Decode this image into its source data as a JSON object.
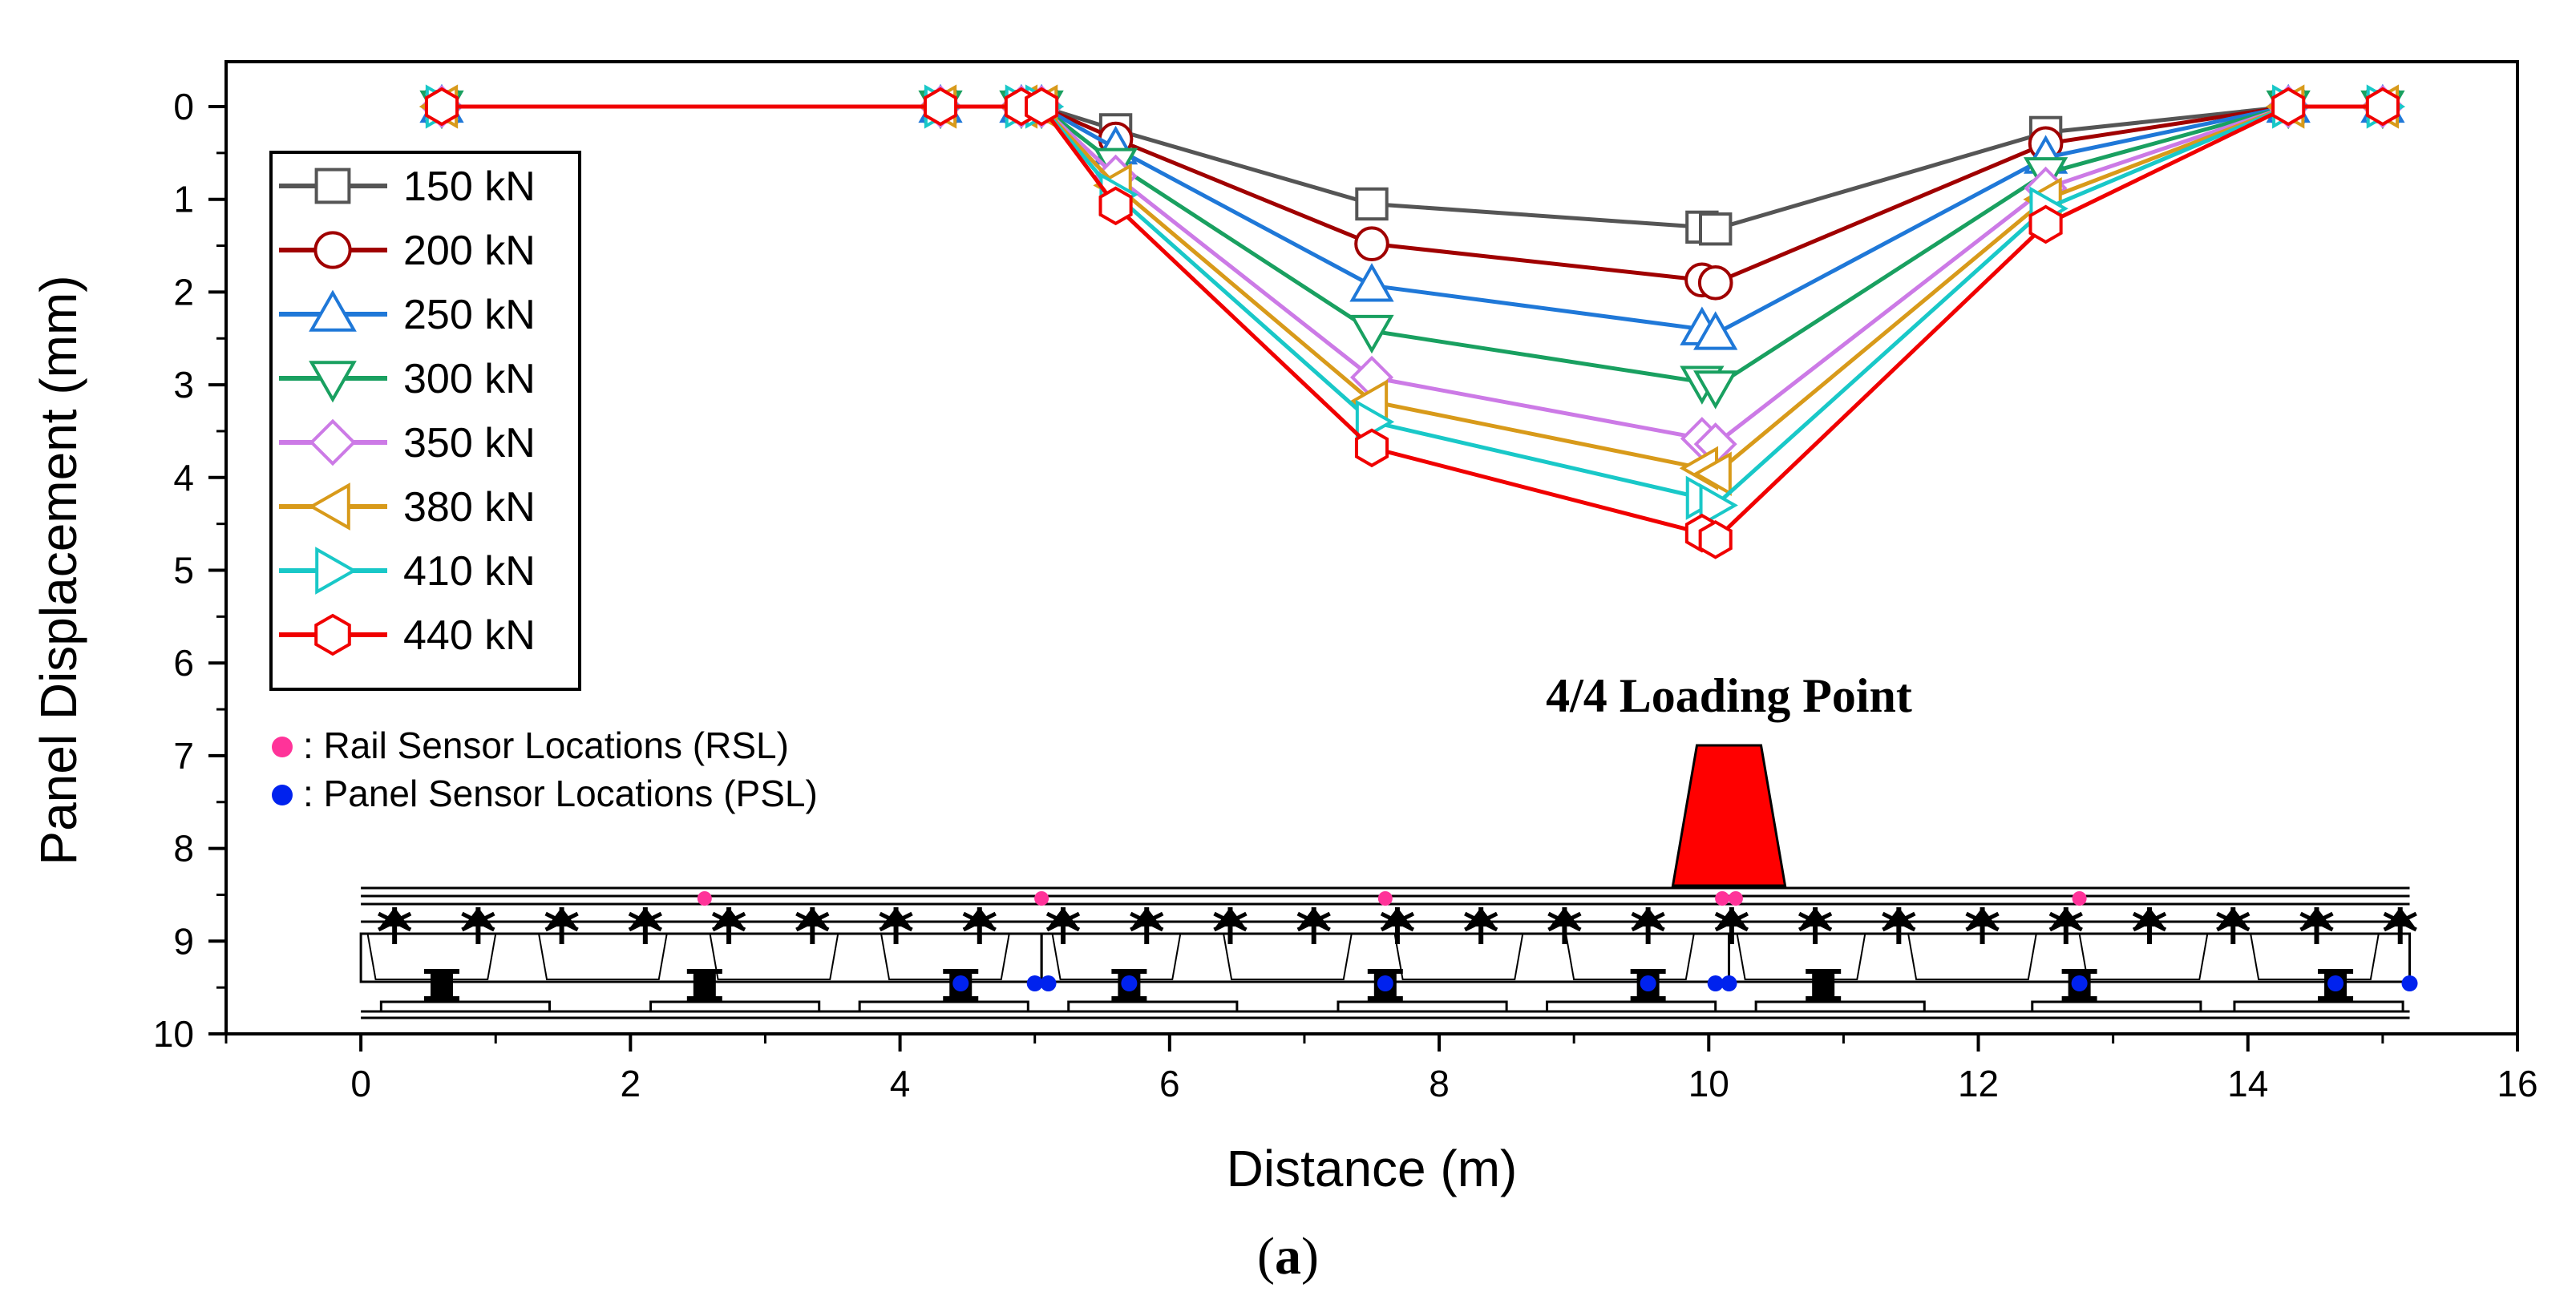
{
  "colors": {
    "150 kN": "#555555",
    "200 kN": "#a00000",
    "250 kN": "#1f78d8",
    "300 kN": "#19a060",
    "350 kN": "#cc7ae6",
    "380 kN": "#d89a1a",
    "410 kN": "#19c8c8",
    "440 kN": "#f00000",
    "rail_sensor": "#ff3399",
    "panel_sensor": "#0022ee",
    "loading_block": "#ff0000"
  },
  "chart_data": {
    "type": "line",
    "xlabel": "Distance (m)",
    "ylabel": "Panel Displacement (mm)",
    "xlim": [
      -1,
      16
    ],
    "ylim": [
      0,
      10
    ],
    "y_inverted": true,
    "xticks": [
      0,
      2,
      4,
      6,
      8,
      10,
      12,
      14,
      16
    ],
    "yticks": [
      0,
      1,
      2,
      3,
      4,
      5,
      6,
      7,
      8,
      9,
      10
    ],
    "legend_position": "top-left",
    "series": [
      {
        "name": "150 kN",
        "marker": "square",
        "x": [
          0.6,
          4.3,
          4.9,
          5.05,
          5.6,
          7.5,
          9.95,
          10.05,
          12.5,
          14.3,
          15.0
        ],
        "y": [
          0,
          0,
          0,
          0,
          0.25,
          1.05,
          1.3,
          1.32,
          0.28,
          0,
          0
        ]
      },
      {
        "name": "200 kN",
        "marker": "circle",
        "x": [
          0.6,
          4.3,
          4.9,
          5.05,
          5.6,
          7.5,
          9.95,
          10.05,
          12.5,
          14.3,
          15.0
        ],
        "y": [
          0,
          0,
          0,
          0,
          0.35,
          1.48,
          1.87,
          1.9,
          0.4,
          0,
          0
        ]
      },
      {
        "name": "250 kN",
        "marker": "triangle-up",
        "x": [
          0.6,
          4.3,
          4.9,
          5.05,
          5.6,
          7.5,
          9.95,
          10.05,
          12.5,
          14.3,
          15.0
        ],
        "y": [
          0,
          0,
          0,
          0,
          0.45,
          1.93,
          2.4,
          2.45,
          0.55,
          0,
          0
        ]
      },
      {
        "name": "300 kN",
        "marker": "triangle-down",
        "x": [
          0.6,
          4.3,
          4.9,
          5.05,
          5.6,
          7.5,
          9.95,
          10.05,
          12.5,
          14.3,
          15.0
        ],
        "y": [
          0,
          0,
          0,
          0,
          0.62,
          2.42,
          2.97,
          3.02,
          0.72,
          0,
          0
        ]
      },
      {
        "name": "350 kN",
        "marker": "diamond",
        "x": [
          0.6,
          4.3,
          4.9,
          5.05,
          5.6,
          7.5,
          9.95,
          10.05,
          12.5,
          14.3,
          15.0
        ],
        "y": [
          0,
          0,
          0,
          0,
          0.75,
          2.92,
          3.58,
          3.64,
          0.88,
          0,
          0
        ]
      },
      {
        "name": "380 kN",
        "marker": "triangle-left",
        "x": [
          0.6,
          4.3,
          4.9,
          5.05,
          5.6,
          7.5,
          9.95,
          10.05,
          12.5,
          14.3,
          15.0
        ],
        "y": [
          0,
          0,
          0,
          0,
          0.85,
          3.18,
          3.9,
          3.96,
          1.0,
          0,
          0
        ]
      },
      {
        "name": "410 kN",
        "marker": "triangle-right",
        "x": [
          0.6,
          4.3,
          4.9,
          5.05,
          5.6,
          7.5,
          9.95,
          10.05,
          12.5,
          14.3,
          15.0
        ],
        "y": [
          0,
          0,
          0,
          0,
          0.95,
          3.4,
          4.22,
          4.3,
          1.1,
          0,
          0
        ]
      },
      {
        "name": "440 kN",
        "marker": "hexagon",
        "x": [
          0.6,
          4.3,
          4.9,
          5.05,
          5.6,
          7.5,
          9.95,
          10.05,
          12.5,
          14.3,
          15.0
        ],
        "y": [
          0,
          0,
          0,
          0,
          1.07,
          3.68,
          4.6,
          4.67,
          1.27,
          0,
          0
        ]
      }
    ],
    "annotations": {
      "loading_point": "4/4 Loading Point",
      "rail_sensor_label": ": Rail Sensor Locations (RSL)",
      "panel_sensor_label": ": Panel Sensor Locations (PSL)"
    },
    "rail_sensor_x": [
      2.55,
      5.05,
      7.6,
      10.1,
      10.2,
      12.75
    ],
    "panel_sensor_x": [
      5.0,
      5.1,
      10.05,
      10.15,
      15.2
    ]
  },
  "caption": {
    "open": "(",
    "letter": "a",
    "close": ")"
  }
}
